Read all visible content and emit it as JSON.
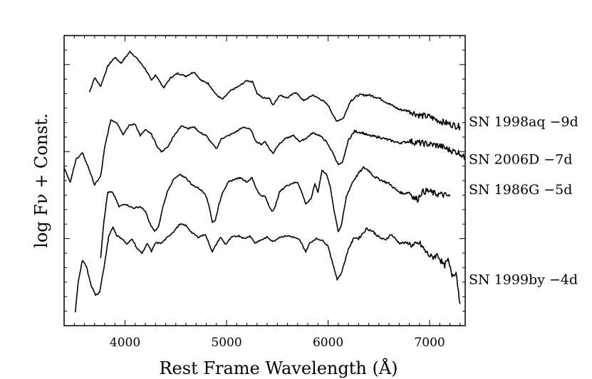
{
  "chart_data": {
    "type": "line",
    "title": "",
    "xlabel": "Rest Frame Wavelength (Å)",
    "ylabel": "log Fν + Const.",
    "xlim": [
      3400,
      7350
    ],
    "ylim": [
      0,
      10
    ],
    "x_ticks": [
      4000,
      5000,
      6000,
      7000
    ],
    "x_tick_labels": [
      "4000",
      "5000",
      "6000",
      "7000"
    ],
    "grid": false,
    "legend": "labels to the right of each spectrum",
    "series": [
      {
        "name": "SN 1998aq −9d",
        "points": [
          [
            3650,
            8.05
          ],
          [
            3700,
            8.55
          ],
          [
            3760,
            8.25
          ],
          [
            3830,
            8.95
          ],
          [
            3900,
            9.25
          ],
          [
            3960,
            9.05
          ],
          [
            4050,
            9.45
          ],
          [
            4120,
            9.2
          ],
          [
            4200,
            8.85
          ],
          [
            4260,
            8.45
          ],
          [
            4300,
            8.65
          ],
          [
            4380,
            8.2
          ],
          [
            4450,
            8.55
          ],
          [
            4520,
            8.7
          ],
          [
            4600,
            8.6
          ],
          [
            4680,
            8.75
          ],
          [
            4750,
            8.45
          ],
          [
            4820,
            8.35
          ],
          [
            4900,
            7.95
          ],
          [
            4960,
            7.8
          ],
          [
            5040,
            8.1
          ],
          [
            5120,
            8.25
          ],
          [
            5200,
            8.45
          ],
          [
            5260,
            8.4
          ],
          [
            5300,
            8.0
          ],
          [
            5360,
            7.85
          ],
          [
            5420,
            7.85
          ],
          [
            5460,
            7.6
          ],
          [
            5520,
            7.95
          ],
          [
            5600,
            7.85
          ],
          [
            5680,
            8.05
          ],
          [
            5760,
            7.75
          ],
          [
            5850,
            7.95
          ],
          [
            5950,
            7.75
          ],
          [
            6000,
            7.6
          ],
          [
            6080,
            7.05
          ],
          [
            6150,
            7.15
          ],
          [
            6220,
            7.75
          ],
          [
            6300,
            7.95
          ],
          [
            6400,
            7.95
          ],
          [
            6500,
            7.85
          ],
          [
            6600,
            7.65
          ],
          [
            6700,
            7.45
          ],
          [
            6800,
            7.4
          ],
          [
            6900,
            7.25
          ],
          [
            7000,
            7.2
          ],
          [
            7100,
            7.05
          ],
          [
            7200,
            6.95
          ],
          [
            7300,
            6.85
          ]
        ]
      },
      {
        "name": "SN 2006D −7d",
        "points": [
          [
            3400,
            5.45
          ],
          [
            3460,
            4.95
          ],
          [
            3520,
            5.75
          ],
          [
            3580,
            5.95
          ],
          [
            3640,
            5.45
          ],
          [
            3700,
            4.85
          ],
          [
            3760,
            5.15
          ],
          [
            3800,
            6.15
          ],
          [
            3860,
            7.1
          ],
          [
            3920,
            7.0
          ],
          [
            3980,
            6.6
          ],
          [
            4040,
            6.9
          ],
          [
            4100,
            6.95
          ],
          [
            4150,
            6.55
          ],
          [
            4200,
            6.75
          ],
          [
            4260,
            6.6
          ],
          [
            4320,
            6.15
          ],
          [
            4360,
            6.0
          ],
          [
            4420,
            6.15
          ],
          [
            4480,
            6.55
          ],
          [
            4560,
            6.9
          ],
          [
            4620,
            6.8
          ],
          [
            4680,
            6.85
          ],
          [
            4740,
            6.65
          ],
          [
            4800,
            6.55
          ],
          [
            4850,
            6.3
          ],
          [
            4900,
            6.1
          ],
          [
            4950,
            6.45
          ],
          [
            5020,
            6.55
          ],
          [
            5100,
            6.7
          ],
          [
            5170,
            6.85
          ],
          [
            5240,
            6.75
          ],
          [
            5290,
            6.35
          ],
          [
            5340,
            6.25
          ],
          [
            5380,
            6.35
          ],
          [
            5430,
            6.05
          ],
          [
            5460,
            5.95
          ],
          [
            5500,
            6.2
          ],
          [
            5580,
            6.45
          ],
          [
            5660,
            6.55
          ],
          [
            5720,
            6.35
          ],
          [
            5780,
            6.45
          ],
          [
            5850,
            6.65
          ],
          [
            5920,
            6.55
          ],
          [
            5980,
            6.35
          ],
          [
            6040,
            6.0
          ],
          [
            6100,
            5.55
          ],
          [
            6140,
            5.6
          ],
          [
            6200,
            6.4
          ],
          [
            6260,
            6.7
          ],
          [
            6340,
            6.65
          ],
          [
            6400,
            6.55
          ],
          [
            6500,
            6.5
          ],
          [
            6600,
            6.4
          ],
          [
            6700,
            6.3
          ],
          [
            6800,
            6.35
          ],
          [
            6900,
            6.3
          ],
          [
            7000,
            6.25
          ],
          [
            7100,
            6.2
          ],
          [
            7200,
            6.05
          ],
          [
            7300,
            5.95
          ],
          [
            7350,
            5.75
          ]
        ]
      },
      {
        "name": "SN 1986G −5d",
        "points": [
          [
            3760,
            2.35
          ],
          [
            3790,
            3.55
          ],
          [
            3830,
            4.6
          ],
          [
            3870,
            4.6
          ],
          [
            3900,
            4.45
          ],
          [
            3940,
            4.1
          ],
          [
            4000,
            4.2
          ],
          [
            4080,
            4.05
          ],
          [
            4150,
            4.1
          ],
          [
            4200,
            3.95
          ],
          [
            4240,
            3.55
          ],
          [
            4290,
            3.25
          ],
          [
            4330,
            3.4
          ],
          [
            4370,
            4.05
          ],
          [
            4420,
            4.65
          ],
          [
            4480,
            5.05
          ],
          [
            4540,
            5.2
          ],
          [
            4600,
            5.1
          ],
          [
            4660,
            4.85
          ],
          [
            4720,
            4.75
          ],
          [
            4790,
            4.55
          ],
          [
            4830,
            4.1
          ],
          [
            4860,
            3.55
          ],
          [
            4890,
            3.65
          ],
          [
            4920,
            4.1
          ],
          [
            4960,
            4.6
          ],
          [
            5020,
            4.95
          ],
          [
            5080,
            5.05
          ],
          [
            5140,
            5.1
          ],
          [
            5200,
            4.95
          ],
          [
            5250,
            5.1
          ],
          [
            5290,
            4.75
          ],
          [
            5330,
            4.5
          ],
          [
            5380,
            4.45
          ],
          [
            5420,
            4.1
          ],
          [
            5450,
            3.95
          ],
          [
            5480,
            4.1
          ],
          [
            5520,
            4.6
          ],
          [
            5580,
            4.8
          ],
          [
            5640,
            4.9
          ],
          [
            5700,
            4.95
          ],
          [
            5740,
            4.6
          ],
          [
            5780,
            4.2
          ],
          [
            5830,
            4.35
          ],
          [
            5870,
            4.9
          ],
          [
            5900,
            4.6
          ],
          [
            5940,
            5.35
          ],
          [
            5980,
            5.25
          ],
          [
            6020,
            4.8
          ],
          [
            6060,
            3.95
          ],
          [
            6100,
            3.25
          ],
          [
            6130,
            3.45
          ],
          [
            6180,
            4.45
          ],
          [
            6240,
            4.95
          ],
          [
            6300,
            5.25
          ],
          [
            6350,
            5.45
          ],
          [
            6400,
            5.35
          ],
          [
            6450,
            5.15
          ],
          [
            6500,
            5.05
          ],
          [
            6600,
            4.9
          ],
          [
            6680,
            4.65
          ],
          [
            6740,
            4.55
          ],
          [
            6800,
            4.6
          ],
          [
            6850,
            4.4
          ],
          [
            6880,
            4.35
          ],
          [
            6920,
            4.6
          ],
          [
            6980,
            4.65
          ],
          [
            7050,
            4.55
          ],
          [
            7150,
            4.5
          ],
          [
            7200,
            4.45
          ]
        ]
      },
      {
        "name": "SN 1999by −4d",
        "points": [
          [
            3510,
            0.45
          ],
          [
            3540,
            1.55
          ],
          [
            3580,
            2.25
          ],
          [
            3620,
            2.05
          ],
          [
            3660,
            1.45
          ],
          [
            3710,
            1.05
          ],
          [
            3750,
            1.15
          ],
          [
            3800,
            2.15
          ],
          [
            3840,
            3.1
          ],
          [
            3880,
            3.4
          ],
          [
            3920,
            3.1
          ],
          [
            3970,
            3.0
          ],
          [
            4020,
            2.8
          ],
          [
            4070,
            3.0
          ],
          [
            4120,
            2.65
          ],
          [
            4170,
            2.5
          ],
          [
            4220,
            2.85
          ],
          [
            4260,
            2.55
          ],
          [
            4300,
            2.85
          ],
          [
            4360,
            2.85
          ],
          [
            4420,
            3.05
          ],
          [
            4480,
            3.25
          ],
          [
            4540,
            3.5
          ],
          [
            4600,
            3.45
          ],
          [
            4660,
            3.2
          ],
          [
            4720,
            3.05
          ],
          [
            4790,
            3.15
          ],
          [
            4830,
            2.8
          ],
          [
            4860,
            2.55
          ],
          [
            4890,
            2.75
          ],
          [
            4940,
            3.05
          ],
          [
            4990,
            2.8
          ],
          [
            5050,
            3.05
          ],
          [
            5120,
            3.1
          ],
          [
            5180,
            3.0
          ],
          [
            5230,
            3.1
          ],
          [
            5280,
            2.85
          ],
          [
            5340,
            2.95
          ],
          [
            5400,
            3.05
          ],
          [
            5460,
            2.9
          ],
          [
            5520,
            3.05
          ],
          [
            5600,
            3.1
          ],
          [
            5660,
            3.05
          ],
          [
            5720,
            2.95
          ],
          [
            5780,
            2.55
          ],
          [
            5820,
            2.85
          ],
          [
            5880,
            3.0
          ],
          [
            5940,
            2.95
          ],
          [
            6000,
            2.75
          ],
          [
            6040,
            2.2
          ],
          [
            6090,
            1.6
          ],
          [
            6130,
            1.8
          ],
          [
            6200,
            2.65
          ],
          [
            6260,
            3.05
          ],
          [
            6300,
            3.0
          ],
          [
            6380,
            3.35
          ],
          [
            6440,
            3.25
          ],
          [
            6500,
            3.05
          ],
          [
            6560,
            2.95
          ],
          [
            6620,
            3.15
          ],
          [
            6700,
            2.85
          ],
          [
            6780,
            2.85
          ],
          [
            6840,
            2.75
          ],
          [
            6900,
            2.85
          ],
          [
            6960,
            2.55
          ],
          [
            7020,
            2.35
          ],
          [
            7080,
            2.45
          ],
          [
            7140,
            2.05
          ],
          [
            7180,
            2.25
          ],
          [
            7220,
            1.75
          ],
          [
            7260,
            1.85
          ],
          [
            7300,
            0.75
          ]
        ]
      }
    ],
    "series_labels_y": [
      7.05,
      5.75,
      4.7,
      1.6
    ]
  },
  "colors": {
    "line": "#000000",
    "background": "#ffffff"
  }
}
